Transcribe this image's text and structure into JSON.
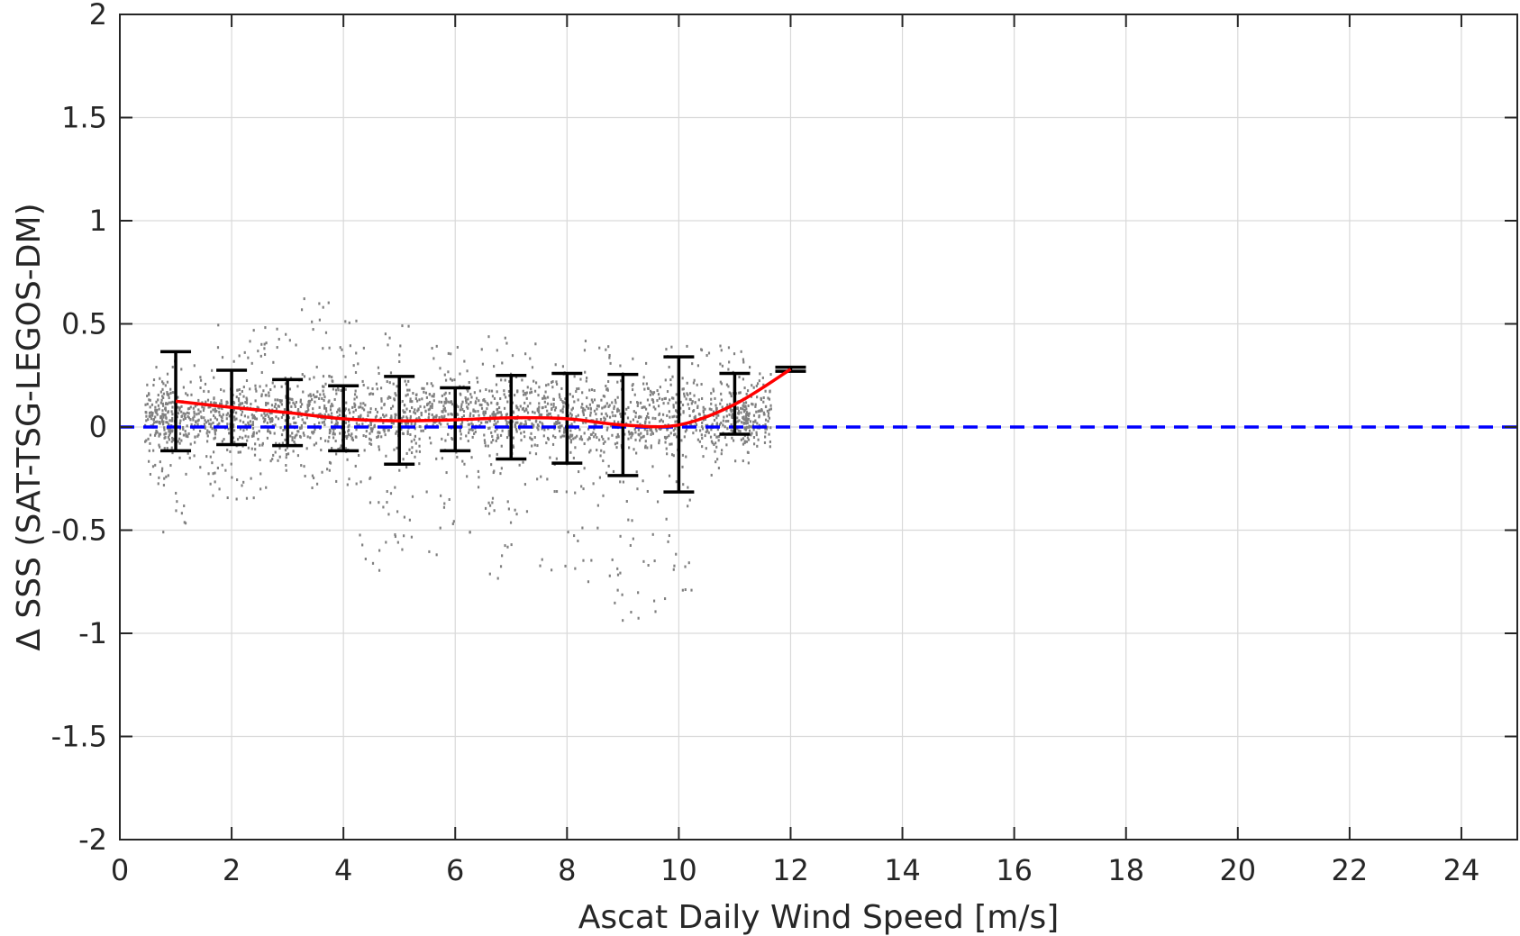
{
  "chart_data": {
    "type": "scatter",
    "xlabel": "Ascat Daily Wind Speed [m/s]",
    "ylabel": "Δ SSS (SAT-TSG-LEGOS-DM)",
    "xlim": [
      0,
      25
    ],
    "ylim": [
      -2,
      2
    ],
    "x_ticks": [
      0,
      2,
      4,
      6,
      8,
      10,
      12,
      14,
      16,
      18,
      20,
      22,
      24
    ],
    "y_ticks": [
      -2,
      -1.5,
      -1,
      -0.5,
      0,
      0.5,
      1,
      1.5,
      2
    ],
    "y_tick_labels": [
      "-2",
      "-1.5",
      "-1",
      "-0.5",
      "0",
      "0.5",
      "1",
      "1.5",
      "2"
    ],
    "grid": true,
    "colors": {
      "scatter": "#808080",
      "mean_line": "#ff0000",
      "zero_line": "#0000ff",
      "errorbars": "#000000",
      "grid": "#d9d9d9",
      "axes": "#262626"
    },
    "scatter_summary": {
      "description": "dense gray point cloud",
      "columns": [
        {
          "x": 0.7,
          "ymin": -0.3,
          "ymax": 0.3
        },
        {
          "x": 1.0,
          "ymin": -0.55,
          "ymax": 0.35
        },
        {
          "x": 1.5,
          "ymin": -0.35,
          "ymax": 0.3
        },
        {
          "x": 2.0,
          "ymin": -0.35,
          "ymax": 0.5
        },
        {
          "x": 2.5,
          "ymin": -0.35,
          "ymax": 0.55
        },
        {
          "x": 3.0,
          "ymin": -0.25,
          "ymax": 0.5
        },
        {
          "x": 3.5,
          "ymin": -0.3,
          "ymax": 0.63
        },
        {
          "x": 4.0,
          "ymin": -0.3,
          "ymax": 0.55
        },
        {
          "x": 4.5,
          "ymin": -0.7,
          "ymax": 0.45
        },
        {
          "x": 5.0,
          "ymin": -0.6,
          "ymax": 0.5
        },
        {
          "x": 5.5,
          "ymin": -0.65,
          "ymax": 0.5
        },
        {
          "x": 6.0,
          "ymin": -0.5,
          "ymax": 0.5
        },
        {
          "x": 6.5,
          "ymin": -0.75,
          "ymax": 0.45
        },
        {
          "x": 7.0,
          "ymin": -0.75,
          "ymax": 0.45
        },
        {
          "x": 7.5,
          "ymin": -0.7,
          "ymax": 0.45
        },
        {
          "x": 8.0,
          "ymin": -0.75,
          "ymax": 0.48
        },
        {
          "x": 8.5,
          "ymin": -0.75,
          "ymax": 0.45
        },
        {
          "x": 9.0,
          "ymin": -0.97,
          "ymax": 0.35
        },
        {
          "x": 9.5,
          "ymin": -0.95,
          "ymax": 0.4
        },
        {
          "x": 10.0,
          "ymin": -0.85,
          "ymax": 0.4
        },
        {
          "x": 10.5,
          "ymin": -0.25,
          "ymax": 0.4
        },
        {
          "x": 11.0,
          "ymin": -0.2,
          "ymax": 0.42
        },
        {
          "x": 11.4,
          "ymin": -0.1,
          "ymax": 0.3
        }
      ]
    },
    "series": [
      {
        "type": "line",
        "style": "dashed",
        "x": [
          0,
          25
        ],
        "y": [
          0,
          0
        ]
      },
      {
        "type": "line",
        "x": [
          1,
          2,
          3,
          4,
          5,
          6,
          7,
          8,
          9,
          10,
          11,
          12
        ],
        "y": [
          0.125,
          0.095,
          0.07,
          0.04,
          0.03,
          0.035,
          0.045,
          0.04,
          0.01,
          0.01,
          0.11,
          0.28
        ]
      },
      {
        "type": "errorbar",
        "x": [
          1,
          2,
          3,
          4,
          5,
          6,
          7,
          8,
          9,
          10,
          11,
          12
        ],
        "lower": [
          -0.115,
          -0.085,
          -0.09,
          -0.115,
          -0.18,
          -0.115,
          -0.155,
          -0.175,
          -0.235,
          -0.315,
          -0.035,
          0.27
        ],
        "upper": [
          0.365,
          0.275,
          0.23,
          0.2,
          0.245,
          0.19,
          0.25,
          0.26,
          0.255,
          0.34,
          0.26,
          0.29
        ]
      }
    ]
  }
}
